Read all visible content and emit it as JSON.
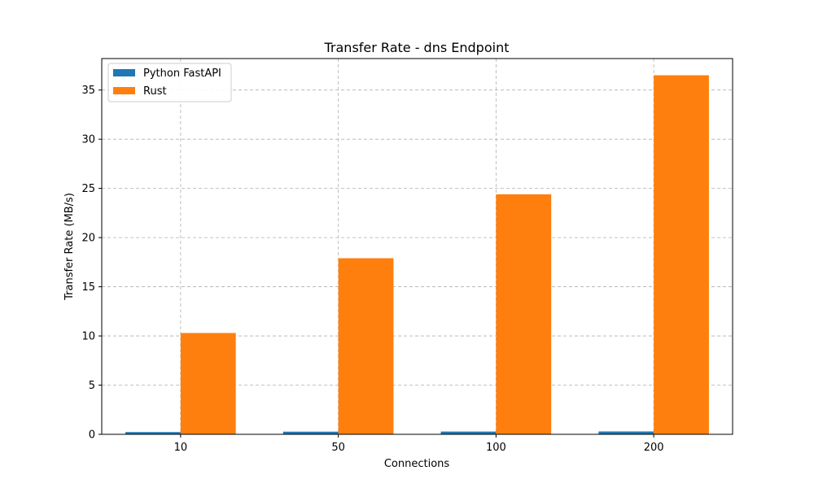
{
  "chart_data": {
    "type": "bar",
    "title": "Transfer Rate - dns Endpoint",
    "xlabel": "Connections",
    "ylabel": "Transfer Rate (MB/s)",
    "categories": [
      "10",
      "50",
      "100",
      "200"
    ],
    "ylim": [
      0,
      38.2
    ],
    "yticks": [
      0,
      5,
      10,
      15,
      20,
      25,
      30,
      35
    ],
    "grid": true,
    "grid_style": "dashed",
    "legend_position": "top-left",
    "series": [
      {
        "name": "Python FastAPI",
        "color": "#1f77b4",
        "values": [
          0.23,
          0.27,
          0.28,
          0.29
        ]
      },
      {
        "name": "Rust",
        "color": "#ff7f0e",
        "values": [
          10.3,
          17.9,
          24.4,
          36.5
        ]
      }
    ]
  }
}
